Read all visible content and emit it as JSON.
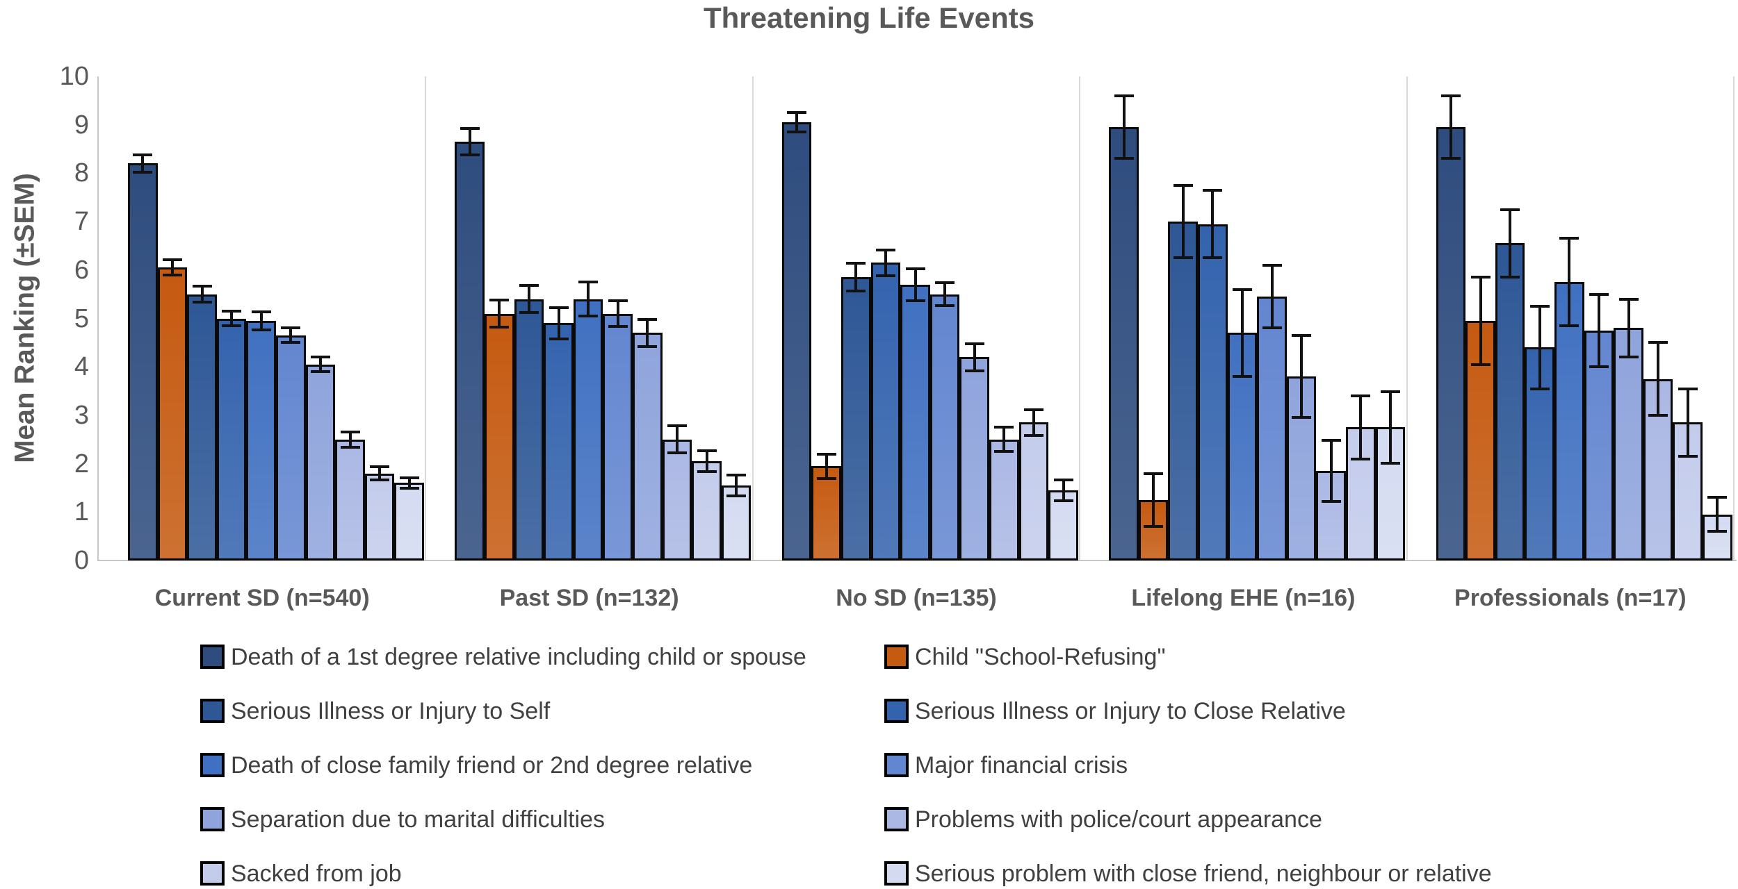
{
  "chart_data": {
    "type": "bar",
    "title": "Threatening Life Events",
    "ylabel": "Mean Ranking (±SEM)",
    "ylim": [
      0,
      10
    ],
    "y_ticks": [
      0,
      1,
      2,
      3,
      4,
      5,
      6,
      7,
      8,
      9,
      10
    ],
    "grid": false,
    "legend_position": "bottom",
    "error_bars": "±SEM",
    "categories": [
      "Current SD (n=540)",
      "Past SD (n=132)",
      "No SD (n=135)",
      "Lifelong EHE (n=16)",
      "Professionals (n=17)"
    ],
    "series": [
      {
        "name": "Death of a 1st degree relative including child or spouse",
        "color": "#2E4C7E",
        "values": [
          8.2,
          8.65,
          9.05,
          8.95,
          8.95
        ],
        "sem": [
          0.18,
          0.27,
          0.2,
          0.65,
          0.65
        ]
      },
      {
        "name": "Child \"School-Refusing\"",
        "color": "#C55A11",
        "values": [
          6.05,
          5.1,
          1.95,
          1.25,
          4.95
        ],
        "sem": [
          0.16,
          0.28,
          0.25,
          0.55,
          0.9
        ]
      },
      {
        "name": "Serious Illness or Injury to Self",
        "color": "#2E5796",
        "values": [
          5.5,
          5.4,
          5.85,
          7.0,
          6.55
        ],
        "sem": [
          0.16,
          0.28,
          0.29,
          0.75,
          0.7
        ]
      },
      {
        "name": "Serious Illness or Injury to Close Relative",
        "color": "#3463AE",
        "values": [
          5.0,
          4.9,
          6.15,
          6.95,
          4.4
        ],
        "sem": [
          0.15,
          0.32,
          0.27,
          0.7,
          0.85
        ]
      },
      {
        "name": "Death of close family friend or 2nd degree relative",
        "color": "#4070C1",
        "values": [
          4.95,
          5.4,
          5.7,
          4.7,
          5.75
        ],
        "sem": [
          0.18,
          0.35,
          0.33,
          0.9,
          0.9
        ]
      },
      {
        "name": "Major financial crisis",
        "color": "#6386D0",
        "values": [
          4.65,
          5.1,
          5.5,
          5.45,
          4.75
        ],
        "sem": [
          0.15,
          0.27,
          0.24,
          0.65,
          0.75
        ]
      },
      {
        "name": "Separation due to marital difficulties",
        "color": "#8FA4DC",
        "values": [
          4.05,
          4.7,
          4.2,
          3.8,
          4.8
        ],
        "sem": [
          0.15,
          0.28,
          0.28,
          0.85,
          0.6
        ]
      },
      {
        "name": "Problems with police/court appearance",
        "color": "#ABB8E4",
        "values": [
          2.5,
          2.5,
          2.5,
          1.85,
          3.75
        ],
        "sem": [
          0.16,
          0.28,
          0.25,
          0.63,
          0.75
        ]
      },
      {
        "name": "Sacked from job",
        "color": "#C3CCEB",
        "values": [
          1.8,
          2.05,
          2.85,
          2.75,
          2.85
        ],
        "sem": [
          0.13,
          0.22,
          0.27,
          0.65,
          0.7
        ]
      },
      {
        "name": "Serious problem with close friend, neighbour or relative",
        "color": "#D4DBF1",
        "values": [
          1.6,
          1.55,
          1.45,
          2.75,
          0.95
        ],
        "sem": [
          0.11,
          0.22,
          0.22,
          0.74,
          0.35
        ]
      }
    ]
  }
}
